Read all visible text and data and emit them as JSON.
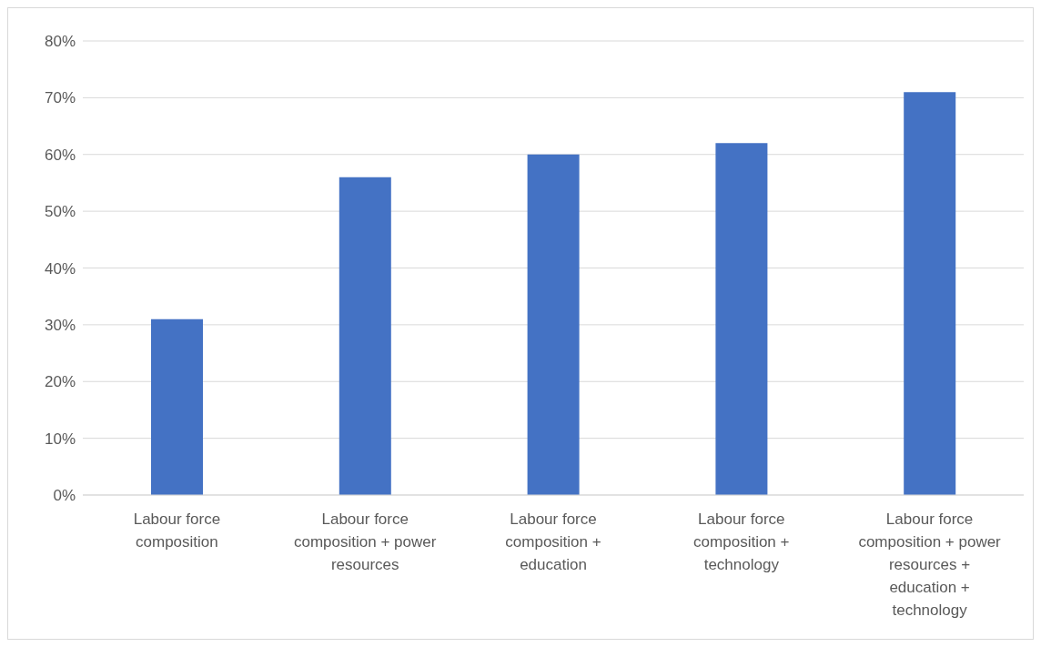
{
  "chart_data": {
    "type": "bar",
    "categories": [
      "Labour force composition",
      "Labour force composition + power resources",
      "Labour force composition + education",
      "Labour force composition + technology",
      "Labour force composition + power resources + education + technology"
    ],
    "values": [
      31,
      56,
      60,
      62,
      71
    ],
    "color": "#4472c4",
    "ylim": [
      0,
      80
    ],
    "yticks": [
      {
        "value": 0,
        "label": "0%"
      },
      {
        "value": 10,
        "label": "10%"
      },
      {
        "value": 20,
        "label": "20%"
      },
      {
        "value": 30,
        "label": "30%"
      },
      {
        "value": 40,
        "label": "40%"
      },
      {
        "value": 50,
        "label": "50%"
      },
      {
        "value": 60,
        "label": "60%"
      },
      {
        "value": 70,
        "label": "70%"
      },
      {
        "value": 80,
        "label": "80%"
      }
    ],
    "grid": "y"
  }
}
